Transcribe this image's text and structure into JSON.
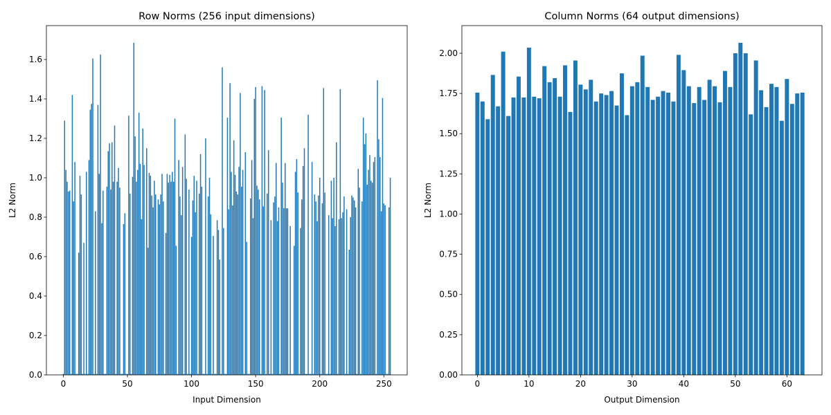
{
  "chart_data": [
    {
      "type": "bar",
      "title": "Row Norms (256 input dimensions)",
      "x_label": "Input Dimension",
      "y_label": "L2 Norm",
      "color": "#1f77b4",
      "x": [
        0,
        1,
        2,
        3,
        4,
        5,
        6,
        7,
        8,
        9,
        10,
        11,
        12,
        13,
        14,
        15,
        16,
        17,
        18,
        19,
        20,
        21,
        22,
        23,
        24,
        25,
        26,
        27,
        28,
        29,
        30,
        31,
        32,
        33,
        34,
        35,
        36,
        37,
        38,
        39,
        40,
        41,
        42,
        43,
        44,
        45,
        46,
        47,
        48,
        49,
        50,
        51,
        52,
        53,
        54,
        55,
        56,
        57,
        58,
        59,
        60,
        61,
        62,
        63,
        64,
        65,
        66,
        67,
        68,
        69,
        70,
        71,
        72,
        73,
        74,
        75,
        76,
        77,
        78,
        79,
        80,
        81,
        82,
        83,
        84,
        85,
        86,
        87,
        88,
        89,
        90,
        91,
        92,
        93,
        94,
        95,
        96,
        97,
        98,
        99,
        100,
        101,
        102,
        103,
        104,
        105,
        106,
        107,
        108,
        109,
        110,
        111,
        112,
        113,
        114,
        115,
        116,
        117,
        118,
        119,
        120,
        121,
        122,
        123,
        124,
        125,
        126,
        127,
        128,
        129,
        130,
        131,
        132,
        133,
        134,
        135,
        136,
        137,
        138,
        139,
        140,
        141,
        142,
        143,
        144,
        145,
        146,
        147,
        148,
        149,
        150,
        151,
        152,
        153,
        154,
        155,
        156,
        157,
        158,
        159,
        160,
        161,
        162,
        163,
        164,
        165,
        166,
        167,
        168,
        169,
        170,
        171,
        172,
        173,
        174,
        175,
        176,
        177,
        178,
        179,
        180,
        181,
        182,
        183,
        184,
        185,
        186,
        187,
        188,
        189,
        190,
        191,
        192,
        193,
        194,
        195,
        196,
        197,
        198,
        199,
        200,
        201,
        202,
        203,
        204,
        205,
        206,
        207,
        208,
        209,
        210,
        211,
        212,
        213,
        214,
        215,
        216,
        217,
        218,
        219,
        220,
        221,
        222,
        223,
        224,
        225,
        226,
        227,
        228,
        229,
        230,
        231,
        232,
        233,
        234,
        235,
        236,
        237,
        238,
        239,
        240,
        241,
        242,
        243,
        244,
        245,
        246,
        247,
        248,
        249,
        250,
        251,
        252,
        253,
        254,
        255
      ],
      "values": [
        0.005,
        1.29,
        1.04,
        0.98,
        0.93,
        0.935,
        0.005,
        1.42,
        0.88,
        1.08,
        0.005,
        0.005,
        0.62,
        1.01,
        0.915,
        0.005,
        0.67,
        0.005,
        1.03,
        0.005,
        1.09,
        1.345,
        1.375,
        1.605,
        0.005,
        0.83,
        0.005,
        1.37,
        1.02,
        1.625,
        0.77,
        0.935,
        0.005,
        0.005,
        0.955,
        1.135,
        1.175,
        0.94,
        1.18,
        0.98,
        1.265,
        0.005,
        0.98,
        1.05,
        0.95,
        0.005,
        0.005,
        0.765,
        0.82,
        0.005,
        0.005,
        1.315,
        0.92,
        0.005,
        1.005,
        1.685,
        1.21,
        0.98,
        1.04,
        1.33,
        1.07,
        0.79,
        1.25,
        1.065,
        0.005,
        1.15,
        0.645,
        1.025,
        1.01,
        0.91,
        0.85,
        0.985,
        0.915,
        0.005,
        0.89,
        0.865,
        0.915,
        1.02,
        0.88,
        0.005,
        0.72,
        1.02,
        0.975,
        1.015,
        0.98,
        1.03,
        0.98,
        1.3,
        0.655,
        0.005,
        1.09,
        0.905,
        0.81,
        1.055,
        0.005,
        1.22,
        0.995,
        0.005,
        0.94,
        0.005,
        0.7,
        0.885,
        1.01,
        0.825,
        0.985,
        0.005,
        0.92,
        1.12,
        0.955,
        0.005,
        0.005,
        1.2,
        0.005,
        0.905,
        1.0,
        0.815,
        0.005,
        0.705,
        0.005,
        0.005,
        0.785,
        0.735,
        0.585,
        0.005,
        1.56,
        0.745,
        0.005,
        0.005,
        1.305,
        0.84,
        1.48,
        1.03,
        0.86,
        1.19,
        1.015,
        0.93,
        0.915,
        1.055,
        1.43,
        0.955,
        1.04,
        0.005,
        1.13,
        0.675,
        0.005,
        0.005,
        0.895,
        1.09,
        0.795,
        1.4,
        1.46,
        0.96,
        0.94,
        0.89,
        0.005,
        1.465,
        0.855,
        1.445,
        0.005,
        0.92,
        1.14,
        0.005,
        0.785,
        0.005,
        0.875,
        0.905,
        1.075,
        0.78,
        0.85,
        0.005,
        1.305,
        0.975,
        0.845,
        1.075,
        0.845,
        0.845,
        0.005,
        0.755,
        0.005,
        0.005,
        0.655,
        1.03,
        1.095,
        0.925,
        0.005,
        0.745,
        0.89,
        1.06,
        1.15,
        0.005,
        0.005,
        1.32,
        0.005,
        0.005,
        1.08,
        0.005,
        0.915,
        0.88,
        0.78,
        0.91,
        1.0,
        0.005,
        0.87,
        1.455,
        0.925,
        0.005,
        0.005,
        0.81,
        0.005,
        0.985,
        0.795,
        1.0,
        0.755,
        1.18,
        0.005,
        0.79,
        1.45,
        0.795,
        0.825,
        0.905,
        0.005,
        0.84,
        0.005,
        0.635,
        0.8,
        0.91,
        0.9,
        0.885,
        0.85,
        0.005,
        1.045,
        0.95,
        0.005,
        0.88,
        1.305,
        1.17,
        1.225,
        0.965,
        1.04,
        1.115,
        0.985,
        0.975,
        1.08,
        1.105,
        0.005,
        1.495,
        1.195,
        1.105,
        0.83,
        1.405,
        0.87,
        0.86,
        0.005,
        0.005,
        0.85,
        1.0
      ],
      "xlim": [
        -13.2,
        268.2
      ],
      "xticks": [
        0,
        50,
        100,
        150,
        200,
        250
      ],
      "ylim": [
        0,
        1.772
      ],
      "yticks": [
        {
          "value": 0,
          "label": "0.0"
        },
        0.2,
        0.4,
        0.6,
        0.8,
        {
          "value": 1,
          "label": "1.0"
        },
        1.2,
        1.4,
        1.6
      ]
    },
    {
      "type": "bar",
      "title": "Column Norms (64 output dimensions)",
      "x_label": "Output Dimension",
      "y_label": "L2 Norm",
      "color": "#1f77b4",
      "x": [
        0,
        1,
        2,
        3,
        4,
        5,
        6,
        7,
        8,
        9,
        10,
        11,
        12,
        13,
        14,
        15,
        16,
        17,
        18,
        19,
        20,
        21,
        22,
        23,
        24,
        25,
        26,
        27,
        28,
        29,
        30,
        31,
        32,
        33,
        34,
        35,
        36,
        37,
        38,
        39,
        40,
        41,
        42,
        43,
        44,
        45,
        46,
        47,
        48,
        49,
        50,
        51,
        52,
        53,
        54,
        55,
        56,
        57,
        58,
        59,
        60,
        61,
        62,
        63
      ],
      "values": [
        1.755,
        1.7,
        1.59,
        1.865,
        1.67,
        2.01,
        1.61,
        1.725,
        1.855,
        1.725,
        2.035,
        1.73,
        1.72,
        1.92,
        1.82,
        1.845,
        1.73,
        1.925,
        1.635,
        1.955,
        1.805,
        1.775,
        1.835,
        1.7,
        1.75,
        1.74,
        1.765,
        1.675,
        1.875,
        1.615,
        1.795,
        1.82,
        1.985,
        1.79,
        1.71,
        1.73,
        1.765,
        1.755,
        1.7,
        1.99,
        1.895,
        1.795,
        1.69,
        1.79,
        1.71,
        1.835,
        1.795,
        1.695,
        1.89,
        1.79,
        2.0,
        2.065,
        2.0,
        1.62,
        1.955,
        1.77,
        1.665,
        1.81,
        1.79,
        1.58,
        1.84,
        1.685,
        1.75,
        1.755
      ],
      "xlim": [
        -3,
        66.8
      ],
      "xticks": [
        0,
        10,
        20,
        30,
        40,
        50,
        60
      ],
      "ylim": [
        0,
        2.172
      ],
      "yticks": [
        {
          "value": 0,
          "label": "0.00"
        },
        0.25,
        {
          "value": 0.5,
          "label": "0.50"
        },
        0.75,
        {
          "value": 1,
          "label": "1.00"
        },
        1.25,
        {
          "value": 1.5,
          "label": "1.50"
        },
        1.75,
        {
          "value": 2,
          "label": "2.00"
        }
      ]
    }
  ]
}
